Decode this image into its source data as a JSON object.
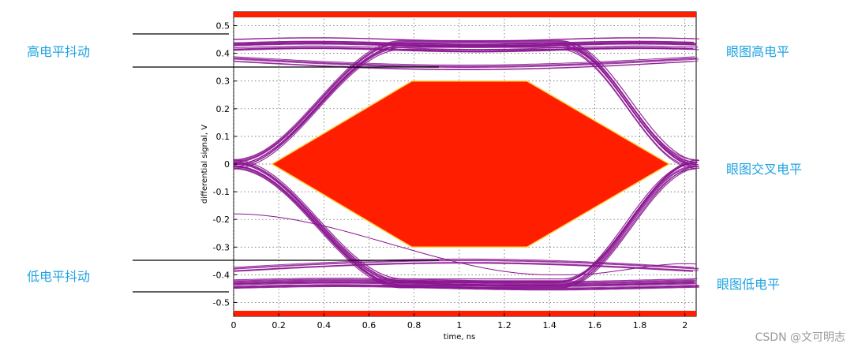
{
  "chart_data": {
    "type": "line",
    "title": "",
    "xlabel": "time, ns",
    "ylabel": "differential signal, V",
    "xlim": [
      0,
      2.05
    ],
    "ylim": [
      -0.55,
      0.55
    ],
    "x_ticks": [
      "0",
      "0.2",
      "0.4",
      "0.6",
      "0.8",
      "1",
      "1.2",
      "1.4",
      "1.6",
      "1.8",
      "2"
    ],
    "y_ticks": [
      "0.5",
      "0.4",
      "0.3",
      "0.2",
      "0.1",
      "0",
      "-0.1",
      "-0.2",
      "-0.3",
      "-0.4",
      "-0.5"
    ],
    "grid": true,
    "colors": {
      "eye": "#8a1590",
      "mask": "#ff1f00",
      "mask_edge": "#ffd24a",
      "limit_bars": "#ff1f00"
    },
    "limit_bars": [
      0.55,
      -0.55
    ],
    "mask_polygon": {
      "x": [
        0.17,
        0.79,
        1.3,
        1.93,
        1.3,
        0.79
      ],
      "y": [
        0,
        0.3,
        0.3,
        0,
        -0.3,
        -0.3
      ]
    },
    "eye_levels": {
      "high": 0.43,
      "low": -0.43,
      "crossing": 0.0,
      "crossing_times": [
        0.0,
        2.05
      ]
    }
  },
  "annotations": {
    "high_jitter": "高电平抖动",
    "low_jitter": "低电平抖动",
    "eye_high": "眼图高电平",
    "eye_cross": "眼图交叉电平",
    "eye_low": "眼图低电平"
  },
  "watermark": "CSDN @文可明志"
}
